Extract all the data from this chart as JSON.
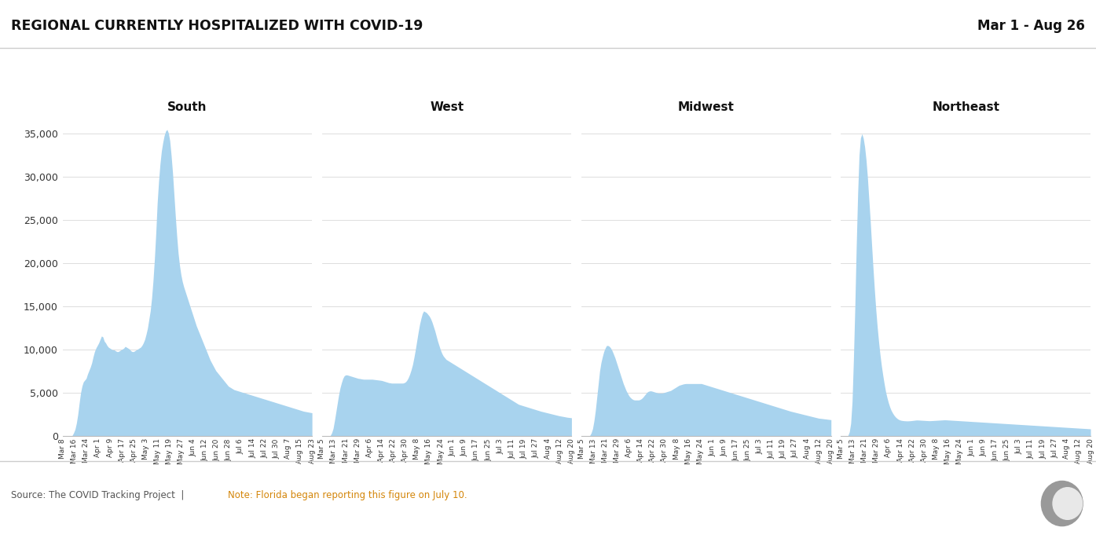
{
  "title": "REGIONAL CURRENTLY HOSPITALIZED WITH COVID-19",
  "date_range": "Mar 1 - Aug 26",
  "source_text": "Source: The COVID Tracking Project",
  "note_text": "Note: Florida began reporting this figure on July 10.",
  "fill_color": "#a8d3ee",
  "background_color": "#ffffff",
  "ylim": [
    0,
    37000
  ],
  "yticks": [
    0,
    5000,
    10000,
    15000,
    20000,
    25000,
    30000,
    35000
  ],
  "regions": [
    "South",
    "West",
    "Midwest",
    "Northeast"
  ],
  "south_xtick_labels": [
    "Mar 8",
    "Mar 16",
    "Mar 24",
    "Apr 1",
    "Apr 9",
    "Apr 17",
    "Apr 25",
    "May 3",
    "May 11",
    "May 19",
    "May 27",
    "Jun 4",
    "Jun 12",
    "Jun 20",
    "Jun 28",
    "Jul 6",
    "Jul 14",
    "Jul 22",
    "Jul 30",
    "Aug 7",
    "Aug 15",
    "Aug 23"
  ],
  "west_xtick_labels": [
    "Mar 5",
    "Mar 13",
    "Mar 21",
    "Mar 29",
    "Apr 6",
    "Apr 14",
    "Apr 22",
    "Apr 30",
    "May 8",
    "May 16",
    "May 24",
    "Jun 1",
    "Jun 9",
    "Jun 17",
    "Jun 25",
    "Jul 3",
    "Jul 11",
    "Jul 19",
    "Jul 27",
    "Aug 4",
    "Aug 12",
    "Aug 20"
  ],
  "midwest_xtick_labels": [
    "Mar 5",
    "Mar 13",
    "Mar 21",
    "Mar 29",
    "Apr 6",
    "Apr 14",
    "Apr 22",
    "Apr 30",
    "May 8",
    "May 16",
    "May 24",
    "Jun 1",
    "Jun 9",
    "Jun 17",
    "Jun 25",
    "Jul 3",
    "Jul 11",
    "Jul 19",
    "Jul 27",
    "Aug 4",
    "Aug 12",
    "Aug 20"
  ],
  "northeast_xtick_labels": [
    "Mar 5",
    "Mar 13",
    "Mar 21",
    "Mar 29",
    "Apr 6",
    "Apr 14",
    "Apr 22",
    "Apr 30",
    "May 8",
    "May 16",
    "May 24",
    "Jun 1",
    "Jun 9",
    "Jun 17",
    "Jun 25",
    "Jul 3",
    "Jul 11",
    "Jul 19",
    "Jul 27",
    "Aug 4",
    "Aug 12",
    "Aug 20"
  ],
  "south_data": [
    0,
    0,
    0,
    0,
    0,
    0,
    0,
    100,
    400,
    800,
    1500,
    2500,
    3800,
    5000,
    5800,
    6300,
    6500,
    6700,
    7200,
    7600,
    8000,
    8500,
    9200,
    9800,
    10200,
    10500,
    10800,
    11200,
    11600,
    11500,
    11000,
    10800,
    10500,
    10300,
    10200,
    10100,
    10000,
    10000,
    9900,
    9800,
    9800,
    9900,
    10000,
    10100,
    10200,
    10400,
    10300,
    10200,
    10100,
    9900,
    9800,
    9800,
    9900,
    10000,
    10100,
    10200,
    10300,
    10500,
    10800,
    11200,
    11800,
    12500,
    13500,
    14500,
    16000,
    18000,
    20500,
    23500,
    27000,
    29500,
    31500,
    33000,
    34000,
    34800,
    35300,
    35500,
    35100,
    34200,
    32500,
    30500,
    28000,
    25500,
    23200,
    21200,
    19800,
    18700,
    17900,
    17300,
    16800,
    16300,
    15800,
    15300,
    14800,
    14300,
    13800,
    13300,
    12800,
    12400,
    12000,
    11600,
    11200,
    10800,
    10400,
    10000,
    9600,
    9200,
    8800,
    8500,
    8200,
    7900,
    7600,
    7400,
    7200,
    7000,
    6800,
    6600,
    6400,
    6200,
    6000,
    5800,
    5700,
    5600,
    5500,
    5400,
    5350,
    5300,
    5250,
    5200,
    5150,
    5100,
    5050,
    5000,
    4950,
    4900,
    4850,
    4800,
    4750,
    4700,
    4650,
    4600,
    4550,
    4500,
    4450,
    4400,
    4350,
    4300,
    4250,
    4200,
    4150,
    4100,
    4050,
    4000,
    3950,
    3900,
    3850,
    3800,
    3750,
    3700,
    3650,
    3600,
    3550,
    3500,
    3450,
    3400,
    3350,
    3300,
    3250,
    3200,
    3150,
    3100,
    3050,
    3000,
    2950,
    2900,
    2870,
    2840,
    2810,
    2780,
    2750,
    2720
  ],
  "west_data": [
    0,
    0,
    0,
    0,
    0,
    0,
    100,
    400,
    900,
    1800,
    2800,
    3800,
    4800,
    5600,
    6200,
    6700,
    7000,
    7100,
    7100,
    7050,
    7000,
    6950,
    6900,
    6850,
    6800,
    6750,
    6700,
    6680,
    6650,
    6620,
    6600,
    6600,
    6600,
    6600,
    6600,
    6600,
    6600,
    6580,
    6560,
    6540,
    6520,
    6500,
    6480,
    6450,
    6400,
    6350,
    6300,
    6250,
    6200,
    6180,
    6150,
    6150,
    6150,
    6150,
    6150,
    6150,
    6150,
    6150,
    6150,
    6200,
    6300,
    6500,
    6800,
    7200,
    7700,
    8300,
    9100,
    10000,
    11000,
    12000,
    12900,
    13600,
    14200,
    14500,
    14400,
    14300,
    14100,
    13900,
    13600,
    13200,
    12700,
    12200,
    11600,
    11000,
    10500,
    10000,
    9600,
    9300,
    9100,
    8900,
    8800,
    8700,
    8600,
    8500,
    8400,
    8300,
    8200,
    8100,
    8000,
    7900,
    7800,
    7700,
    7600,
    7500,
    7400,
    7300,
    7200,
    7100,
    7000,
    6900,
    6800,
    6700,
    6600,
    6500,
    6400,
    6300,
    6200,
    6100,
    6000,
    5900,
    5800,
    5700,
    5600,
    5500,
    5400,
    5300,
    5200,
    5100,
    5000,
    4900,
    4800,
    4700,
    4600,
    4500,
    4400,
    4300,
    4200,
    4100,
    4000,
    3900,
    3800,
    3700,
    3650,
    3600,
    3550,
    3500,
    3450,
    3400,
    3350,
    3300,
    3250,
    3200,
    3150,
    3100,
    3050,
    3000,
    2950,
    2900,
    2860,
    2820,
    2780,
    2740,
    2700,
    2660,
    2620,
    2580,
    2540,
    2500,
    2460,
    2420,
    2380,
    2350,
    2320,
    2290,
    2260,
    2230,
    2200,
    2180,
    2160,
    2140
  ],
  "midwest_data": [
    0,
    0,
    0,
    0,
    0,
    0,
    100,
    400,
    900,
    1800,
    3000,
    4500,
    6000,
    7500,
    8500,
    9200,
    9800,
    10200,
    10500,
    10500,
    10400,
    10200,
    9900,
    9500,
    9100,
    8600,
    8100,
    7600,
    7100,
    6600,
    6100,
    5700,
    5300,
    5000,
    4700,
    4500,
    4350,
    4250,
    4200,
    4200,
    4200,
    4200,
    4250,
    4350,
    4500,
    4700,
    4900,
    5100,
    5200,
    5250,
    5250,
    5200,
    5150,
    5100,
    5050,
    5000,
    5000,
    5000,
    5000,
    5050,
    5100,
    5150,
    5200,
    5250,
    5300,
    5400,
    5500,
    5600,
    5700,
    5800,
    5900,
    5950,
    6000,
    6050,
    6080,
    6100,
    6100,
    6100,
    6100,
    6100,
    6100,
    6100,
    6100,
    6100,
    6100,
    6100,
    6100,
    6050,
    6000,
    5950,
    5900,
    5850,
    5800,
    5750,
    5700,
    5650,
    5600,
    5550,
    5500,
    5450,
    5400,
    5350,
    5300,
    5250,
    5200,
    5150,
    5100,
    5050,
    5000,
    4950,
    4900,
    4850,
    4800,
    4750,
    4700,
    4650,
    4600,
    4550,
    4500,
    4450,
    4400,
    4350,
    4300,
    4250,
    4200,
    4150,
    4100,
    4050,
    4000,
    3950,
    3900,
    3850,
    3800,
    3750,
    3700,
    3650,
    3600,
    3550,
    3500,
    3450,
    3400,
    3350,
    3300,
    3250,
    3200,
    3150,
    3100,
    3050,
    3000,
    2950,
    2900,
    2860,
    2820,
    2780,
    2740,
    2700,
    2660,
    2620,
    2580,
    2540,
    2500,
    2460,
    2420,
    2380,
    2340,
    2300,
    2260,
    2220,
    2180,
    2140,
    2100,
    2080,
    2060,
    2040,
    2020,
    2000,
    1980,
    1960,
    1940,
    1920
  ],
  "northeast_data": [
    0,
    0,
    0,
    0,
    0,
    100,
    500,
    1500,
    4000,
    9000,
    15000,
    22000,
    28000,
    32500,
    34500,
    35000,
    34500,
    33500,
    32000,
    30000,
    27500,
    25000,
    22200,
    19500,
    17000,
    14700,
    12700,
    11000,
    9500,
    8200,
    7100,
    6100,
    5200,
    4500,
    3900,
    3400,
    3000,
    2700,
    2450,
    2250,
    2100,
    1980,
    1900,
    1850,
    1820,
    1800,
    1790,
    1780,
    1780,
    1790,
    1800,
    1820,
    1840,
    1860,
    1880,
    1880,
    1870,
    1860,
    1850,
    1840,
    1830,
    1820,
    1810,
    1800,
    1800,
    1810,
    1820,
    1830,
    1840,
    1850,
    1860,
    1870,
    1880,
    1890,
    1900,
    1900,
    1890,
    1880,
    1870,
    1860,
    1850,
    1840,
    1830,
    1820,
    1810,
    1800,
    1790,
    1780,
    1770,
    1760,
    1750,
    1740,
    1730,
    1720,
    1710,
    1700,
    1690,
    1680,
    1670,
    1660,
    1650,
    1640,
    1630,
    1620,
    1610,
    1600,
    1590,
    1580,
    1570,
    1560,
    1550,
    1540,
    1530,
    1520,
    1510,
    1500,
    1490,
    1480,
    1470,
    1460,
    1450,
    1440,
    1430,
    1420,
    1410,
    1400,
    1390,
    1380,
    1370,
    1360,
    1350,
    1340,
    1330,
    1320,
    1310,
    1300,
    1290,
    1280,
    1270,
    1260,
    1250,
    1240,
    1230,
    1220,
    1210,
    1200,
    1190,
    1180,
    1170,
    1160,
    1150,
    1140,
    1130,
    1120,
    1110,
    1100,
    1090,
    1080,
    1070,
    1060,
    1050,
    1040,
    1030,
    1020,
    1010,
    1000,
    990,
    980,
    970,
    960,
    950,
    940,
    930,
    920,
    910,
    900,
    890,
    880,
    870,
    860
  ]
}
